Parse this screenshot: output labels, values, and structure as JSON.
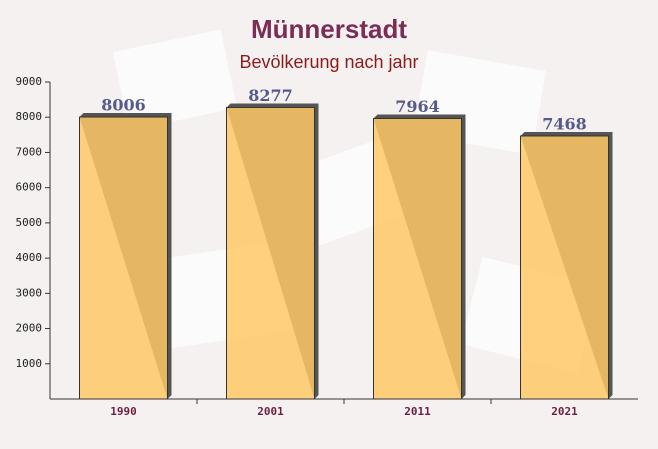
{
  "chart_data": {
    "type": "bar",
    "title": "Münnerstadt",
    "subtitle": "Bevölkerung nach jahr",
    "categories": [
      "1990",
      "2001",
      "2011",
      "2021"
    ],
    "values": [
      8006,
      8277,
      7964,
      7468
    ],
    "color": "#ffc966",
    "ylim": [
      0,
      9000
    ],
    "yticks": [
      1000,
      2000,
      3000,
      4000,
      5000,
      6000,
      7000,
      8000,
      9000
    ],
    "grid": false
  }
}
